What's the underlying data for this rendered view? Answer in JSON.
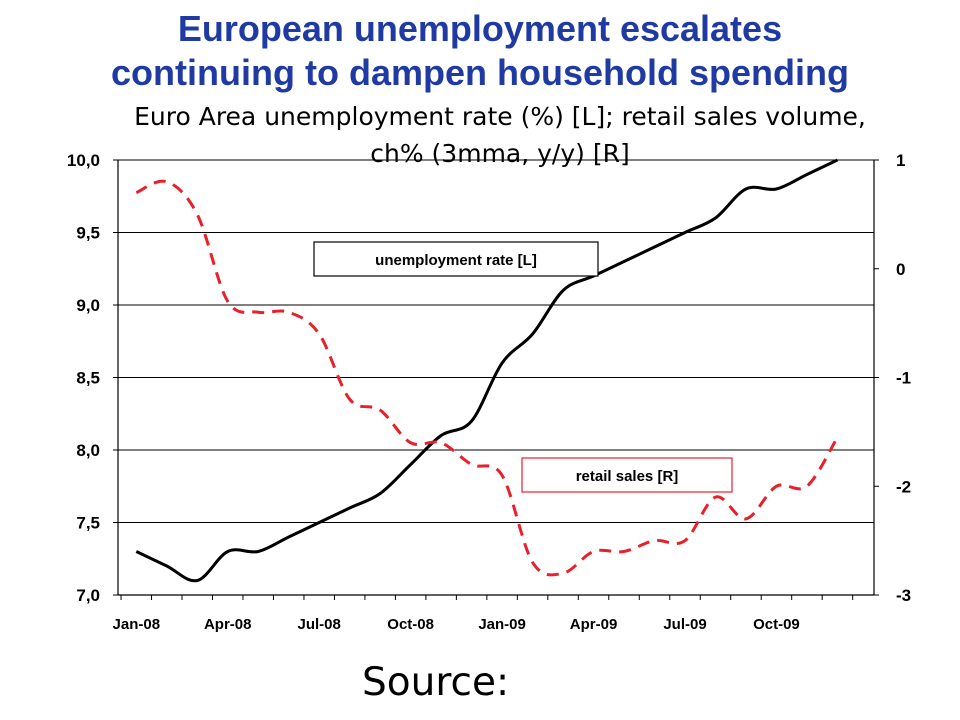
{
  "title_line1": "European unemployment escalates",
  "title_line2": "continuing to dampen household spending",
  "subtitle_line1": "Euro Area unemployment rate (%) [L]; retail sales volume,",
  "subtitle_line2": "ch% (3mma, y/y) [R]",
  "source": "Source:",
  "colors": {
    "title": "#1f3aa3",
    "unemployment": "#000000",
    "retail": "#e8202a",
    "grid": "#000000"
  },
  "chart_data": {
    "type": "line",
    "x": [
      "Jan-08",
      "Feb-08",
      "Mar-08",
      "Apr-08",
      "May-08",
      "Jun-08",
      "Jul-08",
      "Aug-08",
      "Sep-08",
      "Oct-08",
      "Nov-08",
      "Dec-08",
      "Jan-09",
      "Feb-09",
      "Mar-09",
      "Apr-09",
      "May-09",
      "Jun-09",
      "Jul-09",
      "Aug-09",
      "Sep-09",
      "Oct-09",
      "Nov-09",
      "Dec-09"
    ],
    "x_tick_labels": [
      "Jan-08",
      "Apr-08",
      "Jul-08",
      "Oct-08",
      "Jan-09",
      "Apr-09",
      "Jul-09",
      "Oct-09"
    ],
    "y_left": {
      "ylim": [
        7.0,
        10.0
      ],
      "ticks": [
        "7,0",
        "7,5",
        "8,0",
        "8,5",
        "9,0",
        "9,5",
        "10,0"
      ]
    },
    "y_right": {
      "ylim": [
        -3,
        1
      ],
      "ticks": [
        "-3",
        "-2",
        "-1",
        "0",
        "1"
      ]
    },
    "grid": "horizontal",
    "series": [
      {
        "name": "unemployment rate [L]",
        "axis": "left",
        "style": "solid",
        "values": [
          7.3,
          7.2,
          7.1,
          7.3,
          7.3,
          7.4,
          7.5,
          7.6,
          7.7,
          7.9,
          8.1,
          8.2,
          8.6,
          8.8,
          9.1,
          9.2,
          9.3,
          9.4,
          9.5,
          9.6,
          9.8,
          9.8,
          9.9,
          10.0
        ]
      },
      {
        "name": "retail sales [R]",
        "axis": "right",
        "style": "dashed",
        "values": [
          0.7,
          0.8,
          0.5,
          -0.3,
          -0.4,
          -0.4,
          -0.6,
          -1.2,
          -1.3,
          -1.6,
          -1.6,
          -1.8,
          -1.9,
          -2.7,
          -2.8,
          -2.6,
          -2.6,
          -2.5,
          -2.5,
          -2.1,
          -2.3,
          -2.0,
          -2.0,
          -1.55
        ]
      }
    ]
  }
}
